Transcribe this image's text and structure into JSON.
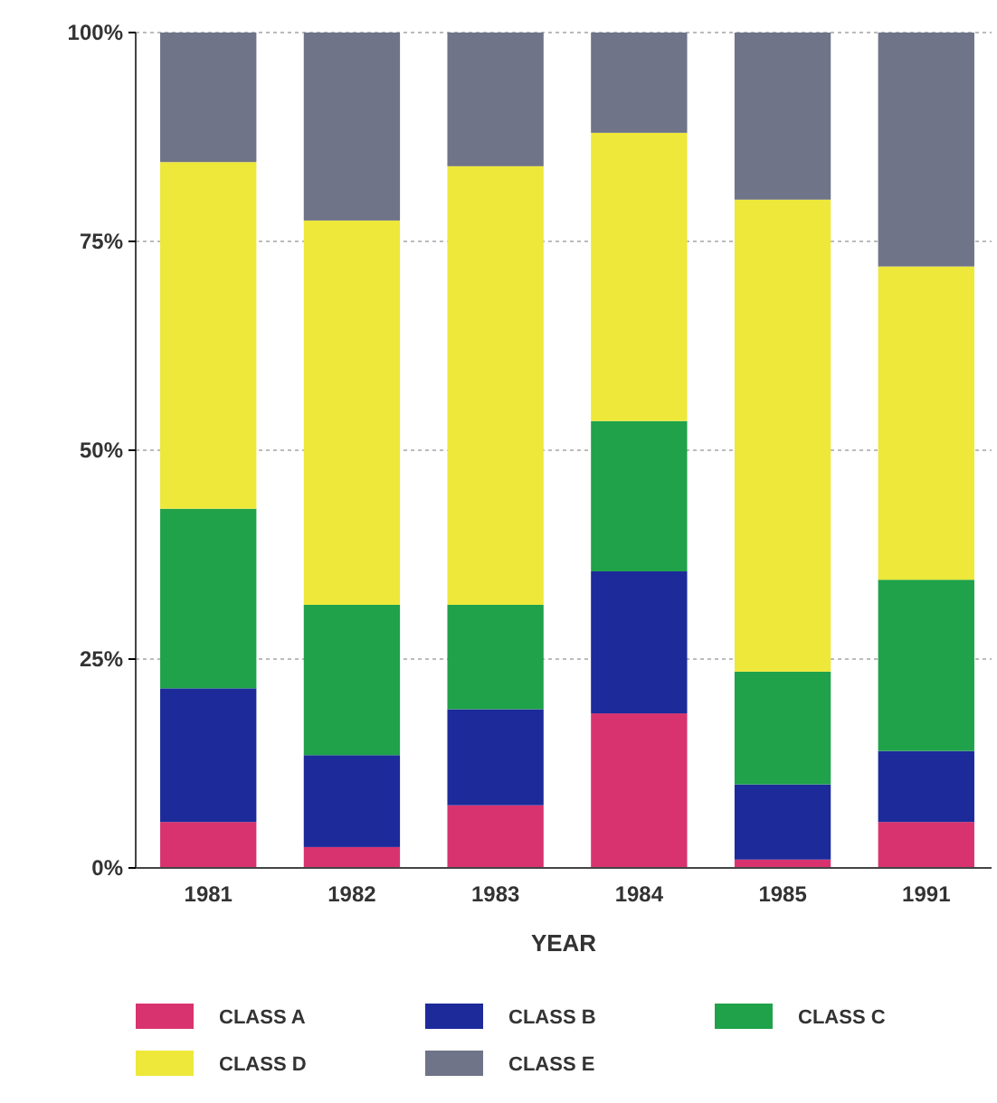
{
  "chart_data": {
    "type": "bar",
    "stacked": true,
    "xlabel": "YEAR",
    "categories": [
      "1981",
      "1982",
      "1983",
      "1984",
      "1985",
      "1991"
    ],
    "series": [
      {
        "name": "CLASS A",
        "color": "#d8336f",
        "values": [
          5.5,
          2.5,
          7.5,
          18.5,
          1,
          5.5
        ]
      },
      {
        "name": "CLASS B",
        "color": "#1c2a9a",
        "values": [
          16,
          11,
          11.5,
          17,
          9,
          8.5
        ]
      },
      {
        "name": "CLASS C",
        "color": "#1fa24a",
        "values": [
          21.5,
          18,
          12.5,
          18,
          13.5,
          20.5
        ]
      },
      {
        "name": "CLASS D",
        "color": "#ede83a",
        "values": [
          41.5,
          46,
          52.5,
          34.5,
          56.5,
          37.5
        ]
      },
      {
        "name": "CLASS E",
        "color": "#6f7488",
        "values": [
          15.5,
          22.5,
          16,
          12,
          20,
          28
        ]
      }
    ],
    "ylim": [
      0,
      100
    ],
    "yticks": [
      {
        "value": 0,
        "label": "0%"
      },
      {
        "value": 25,
        "label": "25%"
      },
      {
        "value": 50,
        "label": "50%"
      },
      {
        "value": 75,
        "label": "75%"
      },
      {
        "value": 100,
        "label": "100%"
      }
    ],
    "grid": "y",
    "legend": "bottom"
  }
}
